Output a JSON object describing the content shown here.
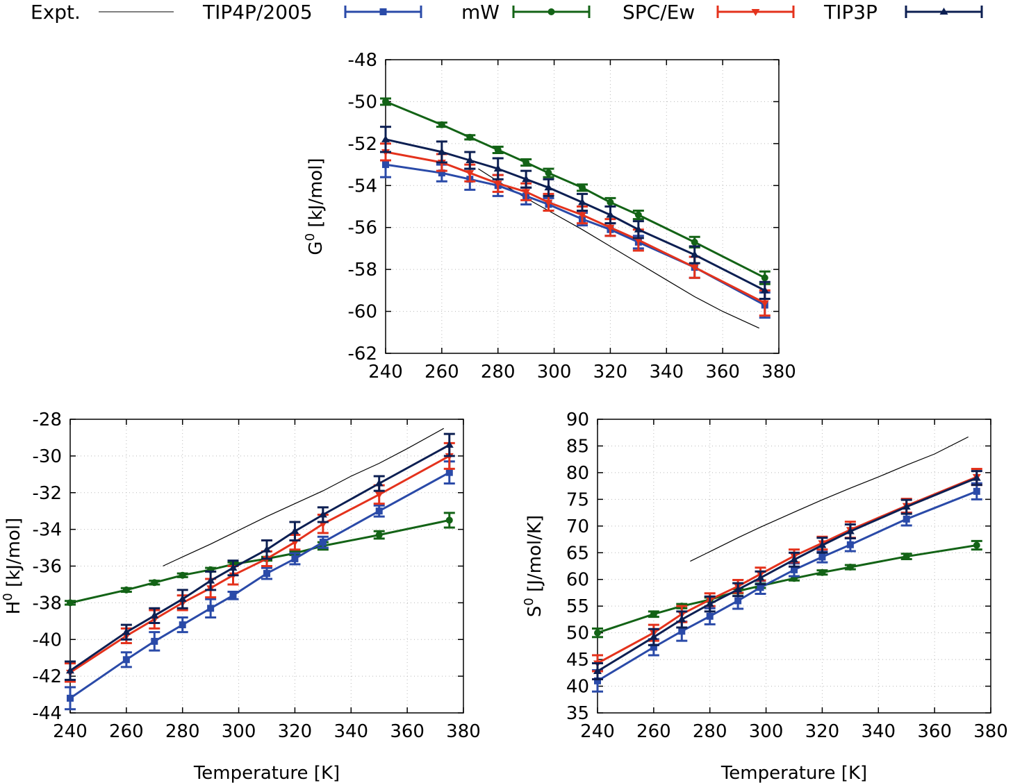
{
  "colors": {
    "TIP4P/2005": "#2a4aa8",
    "mW": "#136316",
    "SPC/Ew": "#e4321c",
    "TIP3P": "#0c1f52",
    "Expt.": "#000000"
  },
  "legend": [
    {
      "label": "Expt.",
      "marker": "none"
    },
    {
      "label": "TIP4P/2005",
      "marker": "square"
    },
    {
      "label": "mW",
      "marker": "circle"
    },
    {
      "label": "SPC/Ew",
      "marker": "triangle-down"
    },
    {
      "label": "TIP3P",
      "marker": "triangle-up"
    }
  ],
  "chart_data": [
    {
      "type": "line",
      "panel": "G",
      "xlabel": "",
      "ylabel": "G^0 [kJ/mol]",
      "ylabel_main": "G",
      "ylabel_sup": "0",
      "ylabel_rest": " [kJ/mol]",
      "xlim": [
        240,
        380
      ],
      "ylim": [
        -62,
        -48
      ],
      "xticks": [
        240,
        260,
        280,
        300,
        320,
        340,
        360,
        380
      ],
      "yticks": [
        -62,
        -60,
        -58,
        -56,
        -54,
        -52,
        -50,
        -48
      ],
      "x": [
        240,
        260,
        270,
        280,
        290,
        298,
        310,
        320,
        330,
        350,
        375
      ],
      "series": [
        {
          "name": "TIP4P/2005",
          "values": [
            -53.0,
            -53.4,
            -53.7,
            -54.0,
            -54.5,
            -54.9,
            -55.6,
            -56.1,
            -56.7,
            -57.9,
            -59.7
          ],
          "errors": [
            0.6,
            0.4,
            0.5,
            0.5,
            0.4,
            0.3,
            0.3,
            0.3,
            0.3,
            0.5,
            0.6
          ]
        },
        {
          "name": "mW",
          "values": [
            -50.0,
            -51.1,
            -51.7,
            -52.3,
            -52.9,
            -53.4,
            -54.1,
            -54.8,
            -55.4,
            -56.7,
            -58.4
          ],
          "errors": [
            0.15,
            0.1,
            0.1,
            0.15,
            0.15,
            0.2,
            0.15,
            0.2,
            0.2,
            0.25,
            0.3
          ]
        },
        {
          "name": "SPC/Ew",
          "values": [
            -52.4,
            -52.9,
            -53.4,
            -53.9,
            -54.3,
            -54.8,
            -55.4,
            -56.0,
            -56.6,
            -57.9,
            -59.6
          ],
          "errors": [
            0.4,
            0.4,
            0.4,
            0.4,
            0.4,
            0.4,
            0.4,
            0.4,
            0.5,
            0.5,
            0.6
          ]
        },
        {
          "name": "TIP3P",
          "values": [
            -51.8,
            -52.4,
            -52.8,
            -53.2,
            -53.7,
            -54.1,
            -54.8,
            -55.4,
            -56.1,
            -57.3,
            -59.0
          ],
          "errors": [
            0.6,
            0.5,
            0.4,
            0.5,
            0.4,
            0.4,
            0.4,
            0.4,
            0.4,
            0.4,
            0.4
          ]
        },
        {
          "name": "Expt.",
          "type": "line",
          "x": [
            273,
            280,
            290,
            298,
            310,
            320,
            330,
            340,
            350,
            360,
            373
          ],
          "values": [
            -53.2,
            -53.8,
            -54.6,
            -55.2,
            -56.1,
            -56.9,
            -57.7,
            -58.5,
            -59.3,
            -60.0,
            -60.8
          ]
        }
      ]
    },
    {
      "type": "line",
      "panel": "H",
      "xlabel": "Temperature [K]",
      "ylabel": "H^0 [kJ/mol]",
      "ylabel_main": "H",
      "ylabel_sup": "0",
      "ylabel_rest": " [kJ/mol]",
      "xlim": [
        240,
        380
      ],
      "ylim": [
        -44,
        -28
      ],
      "xticks": [
        240,
        260,
        280,
        300,
        320,
        340,
        360,
        380
      ],
      "yticks": [
        -44,
        -42,
        -40,
        -38,
        -36,
        -34,
        -32,
        -30,
        -28
      ],
      "x": [
        240,
        260,
        270,
        280,
        290,
        298,
        310,
        320,
        330,
        350,
        375
      ],
      "series": [
        {
          "name": "TIP4P/2005",
          "values": [
            -43.2,
            -41.1,
            -40.1,
            -39.2,
            -38.3,
            -37.6,
            -36.4,
            -35.6,
            -34.7,
            -33.0,
            -30.9
          ],
          "errors": [
            0.6,
            0.4,
            0.5,
            0.4,
            0.5,
            0.2,
            0.3,
            0.3,
            0.3,
            0.3,
            0.6
          ]
        },
        {
          "name": "mW",
          "values": [
            -38.0,
            -37.3,
            -36.9,
            -36.5,
            -36.2,
            -35.9,
            -35.6,
            -35.3,
            -34.9,
            -34.3,
            -33.5
          ],
          "errors": [
            0.1,
            0.1,
            0.1,
            0.1,
            0.1,
            0.1,
            0.1,
            0.1,
            0.2,
            0.2,
            0.4
          ]
        },
        {
          "name": "SPC/Ew",
          "values": [
            -41.8,
            -39.8,
            -38.9,
            -38.0,
            -37.2,
            -36.5,
            -35.6,
            -34.7,
            -33.7,
            -32.1,
            -30.0
          ],
          "errors": [
            0.5,
            0.4,
            0.5,
            0.4,
            0.5,
            0.5,
            0.4,
            0.4,
            0.5,
            0.5,
            0.7
          ]
        },
        {
          "name": "TIP3P",
          "values": [
            -41.7,
            -39.6,
            -38.7,
            -37.8,
            -36.8,
            -36.1,
            -35.1,
            -34.1,
            -33.2,
            -31.5,
            -29.4
          ],
          "errors": [
            0.5,
            0.4,
            0.4,
            0.5,
            0.5,
            0.4,
            0.5,
            0.5,
            0.4,
            0.4,
            0.6
          ]
        },
        {
          "name": "Expt.",
          "type": "line",
          "x": [
            273,
            280,
            290,
            298,
            310,
            320,
            330,
            340,
            350,
            360,
            373
          ],
          "values": [
            -36.0,
            -35.5,
            -34.8,
            -34.2,
            -33.3,
            -32.6,
            -31.9,
            -31.1,
            -30.4,
            -29.6,
            -28.5
          ]
        }
      ]
    },
    {
      "type": "line",
      "panel": "S",
      "xlabel": "Temperature [K]",
      "ylabel": "S^0 [J/mol/K]",
      "ylabel_main": "S",
      "ylabel_sup": "0",
      "ylabel_rest": " [J/mol/K]",
      "xlim": [
        240,
        380
      ],
      "ylim": [
        35,
        90
      ],
      "xticks": [
        240,
        260,
        280,
        300,
        320,
        340,
        360,
        380
      ],
      "yticks": [
        35,
        40,
        45,
        50,
        55,
        60,
        65,
        70,
        75,
        80,
        85,
        90
      ],
      "x": [
        240,
        260,
        270,
        280,
        290,
        298,
        310,
        320,
        330,
        350,
        375
      ],
      "series": [
        {
          "name": "TIP4P/2005",
          "values": [
            41.0,
            47.3,
            50.3,
            53.1,
            56.0,
            58.5,
            61.8,
            64.2,
            66.5,
            71.3,
            76.5
          ],
          "errors": [
            2.0,
            1.5,
            1.8,
            1.5,
            1.5,
            1.2,
            1.2,
            1.0,
            1.2,
            1.2,
            1.5
          ]
        },
        {
          "name": "mW",
          "values": [
            50.0,
            53.5,
            55.0,
            56.2,
            57.8,
            58.8,
            60.2,
            61.3,
            62.3,
            64.3,
            66.4
          ],
          "errors": [
            0.8,
            0.5,
            0.4,
            0.4,
            0.4,
            0.4,
            0.4,
            0.4,
            0.4,
            0.5,
            0.8
          ]
        },
        {
          "name": "SPC/Ew",
          "values": [
            44.3,
            50.0,
            53.5,
            56.2,
            58.7,
            61.0,
            64.4,
            66.8,
            69.3,
            73.8,
            79.2
          ],
          "errors": [
            1.5,
            1.5,
            1.5,
            1.2,
            1.2,
            1.2,
            1.2,
            1.2,
            1.5,
            1.3,
            1.5
          ]
        },
        {
          "name": "TIP3P",
          "values": [
            42.8,
            49.2,
            52.5,
            55.4,
            58.1,
            60.3,
            63.7,
            66.4,
            69.0,
            73.6,
            79.0
          ],
          "errors": [
            1.5,
            1.5,
            1.5,
            1.4,
            1.2,
            1.2,
            1.3,
            1.4,
            1.3,
            1.3,
            1.3
          ]
        },
        {
          "name": "Expt.",
          "type": "line",
          "x": [
            273,
            280,
            290,
            298,
            310,
            320,
            330,
            340,
            350,
            360,
            372
          ],
          "values": [
            63.4,
            65.2,
            67.8,
            69.8,
            72.6,
            74.9,
            77.1,
            79.2,
            81.4,
            83.5,
            86.7
          ]
        }
      ]
    }
  ]
}
